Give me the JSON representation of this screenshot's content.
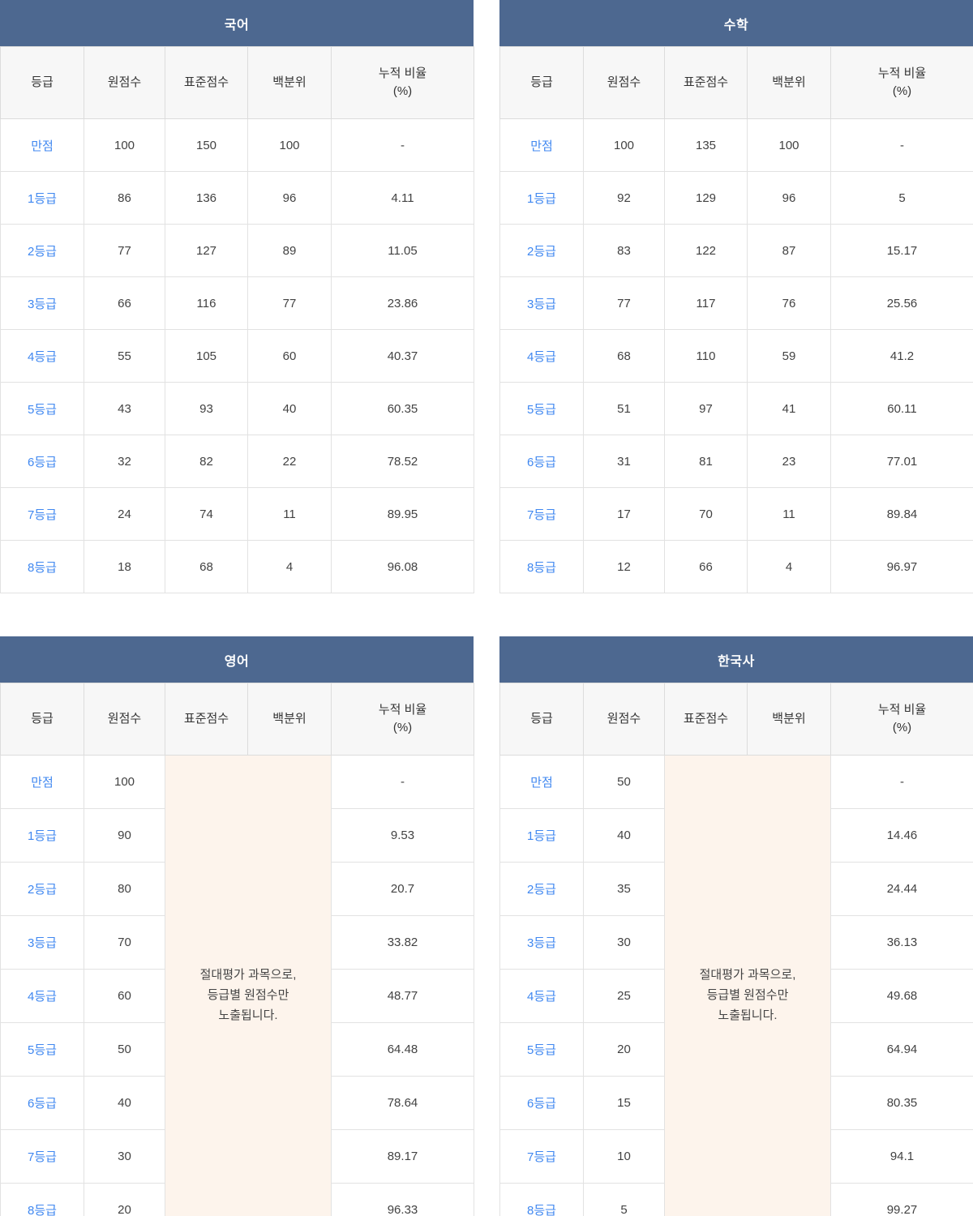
{
  "colors": {
    "title_bar_bg": "#4d6890",
    "title_bar_text": "#ffffff",
    "column_header_bg": "#f7f7f7",
    "grade_link_color": "#3f87f0",
    "value_text_color": "#424242",
    "note_bg": "#fdf4ec",
    "border_color": "#e2e2e2"
  },
  "columns": {
    "grade": "등급",
    "raw": "원점수",
    "standard": "표준점수",
    "percentile": "백분위",
    "cumulative_line1": "누적 비율",
    "cumulative_line2": "(%)"
  },
  "tables": [
    {
      "title": "국어",
      "type": "relative",
      "rows": [
        {
          "grade": "만점",
          "raw": "100",
          "standard": "150",
          "percentile": "100",
          "cumulative": "-"
        },
        {
          "grade": "1등급",
          "raw": "86",
          "standard": "136",
          "percentile": "96",
          "cumulative": "4.11"
        },
        {
          "grade": "2등급",
          "raw": "77",
          "standard": "127",
          "percentile": "89",
          "cumulative": "11.05"
        },
        {
          "grade": "3등급",
          "raw": "66",
          "standard": "116",
          "percentile": "77",
          "cumulative": "23.86"
        },
        {
          "grade": "4등급",
          "raw": "55",
          "standard": "105",
          "percentile": "60",
          "cumulative": "40.37"
        },
        {
          "grade": "5등급",
          "raw": "43",
          "standard": "93",
          "percentile": "40",
          "cumulative": "60.35"
        },
        {
          "grade": "6등급",
          "raw": "32",
          "standard": "82",
          "percentile": "22",
          "cumulative": "78.52"
        },
        {
          "grade": "7등급",
          "raw": "24",
          "standard": "74",
          "percentile": "11",
          "cumulative": "89.95"
        },
        {
          "grade": "8등급",
          "raw": "18",
          "standard": "68",
          "percentile": "4",
          "cumulative": "96.08"
        }
      ]
    },
    {
      "title": "수학",
      "type": "relative",
      "rows": [
        {
          "grade": "만점",
          "raw": "100",
          "standard": "135",
          "percentile": "100",
          "cumulative": "-"
        },
        {
          "grade": "1등급",
          "raw": "92",
          "standard": "129",
          "percentile": "96",
          "cumulative": "5"
        },
        {
          "grade": "2등급",
          "raw": "83",
          "standard": "122",
          "percentile": "87",
          "cumulative": "15.17"
        },
        {
          "grade": "3등급",
          "raw": "77",
          "standard": "117",
          "percentile": "76",
          "cumulative": "25.56"
        },
        {
          "grade": "4등급",
          "raw": "68",
          "standard": "110",
          "percentile": "59",
          "cumulative": "41.2"
        },
        {
          "grade": "5등급",
          "raw": "51",
          "standard": "97",
          "percentile": "41",
          "cumulative": "60.11"
        },
        {
          "grade": "6등급",
          "raw": "31",
          "standard": "81",
          "percentile": "23",
          "cumulative": "77.01"
        },
        {
          "grade": "7등급",
          "raw": "17",
          "standard": "70",
          "percentile": "11",
          "cumulative": "89.84"
        },
        {
          "grade": "8등급",
          "raw": "12",
          "standard": "66",
          "percentile": "4",
          "cumulative": "96.97"
        }
      ]
    },
    {
      "title": "영어",
      "type": "absolute",
      "note_lines": [
        "절대평가 과목으로,",
        "등급별 원점수만",
        "노출됩니다."
      ],
      "rows": [
        {
          "grade": "만점",
          "raw": "100",
          "cumulative": "-"
        },
        {
          "grade": "1등급",
          "raw": "90",
          "cumulative": "9.53"
        },
        {
          "grade": "2등급",
          "raw": "80",
          "cumulative": "20.7"
        },
        {
          "grade": "3등급",
          "raw": "70",
          "cumulative": "33.82"
        },
        {
          "grade": "4등급",
          "raw": "60",
          "cumulative": "48.77"
        },
        {
          "grade": "5등급",
          "raw": "50",
          "cumulative": "64.48"
        },
        {
          "grade": "6등급",
          "raw": "40",
          "cumulative": "78.64"
        },
        {
          "grade": "7등급",
          "raw": "30",
          "cumulative": "89.17"
        },
        {
          "grade": "8등급",
          "raw": "20",
          "cumulative": "96.33"
        }
      ]
    },
    {
      "title": "한국사",
      "type": "absolute",
      "note_lines": [
        "절대평가 과목으로,",
        "등급별 원점수만",
        "노출됩니다."
      ],
      "rows": [
        {
          "grade": "만점",
          "raw": "50",
          "cumulative": "-"
        },
        {
          "grade": "1등급",
          "raw": "40",
          "cumulative": "14.46"
        },
        {
          "grade": "2등급",
          "raw": "35",
          "cumulative": "24.44"
        },
        {
          "grade": "3등급",
          "raw": "30",
          "cumulative": "36.13"
        },
        {
          "grade": "4등급",
          "raw": "25",
          "cumulative": "49.68"
        },
        {
          "grade": "5등급",
          "raw": "20",
          "cumulative": "64.94"
        },
        {
          "grade": "6등급",
          "raw": "15",
          "cumulative": "80.35"
        },
        {
          "grade": "7등급",
          "raw": "10",
          "cumulative": "94.1"
        },
        {
          "grade": "8등급",
          "raw": "5",
          "cumulative": "99.27"
        }
      ]
    }
  ]
}
